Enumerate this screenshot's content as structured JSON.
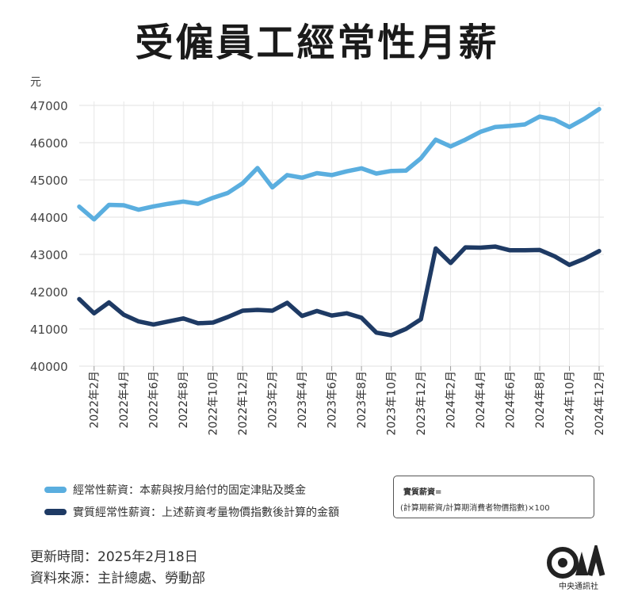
{
  "title": "受僱員工經常性月薪",
  "chart_data": {
    "type": "line",
    "ylabel": "元",
    "ylim": [
      40000,
      47000
    ],
    "yticks": [
      40000,
      41000,
      42000,
      43000,
      44000,
      45000,
      46000,
      47000
    ],
    "x": [
      "2022年1月",
      "2022年2月",
      "2022年3月",
      "2022年4月",
      "2022年5月",
      "2022年6月",
      "2022年7月",
      "2022年8月",
      "2022年9月",
      "2022年10月",
      "2022年11月",
      "2022年12月",
      "2023年1月",
      "2023年2月",
      "2023年3月",
      "2023年4月",
      "2023年5月",
      "2023年6月",
      "2023年7月",
      "2023年8月",
      "2023年9月",
      "2023年10月",
      "2023年11月",
      "2023年12月",
      "2024年1月",
      "2024年2月",
      "2024年3月",
      "2024年4月",
      "2024年5月",
      "2024年6月",
      "2024年7月",
      "2024年8月",
      "2024年9月",
      "2024年10月",
      "2024年11月",
      "2024年12月"
    ],
    "tick_labels": [
      "2022年2月",
      "2022年4月",
      "2022年6月",
      "2022年8月",
      "2022年10月",
      "2022年12月",
      "2023年2月",
      "2023年4月",
      "2023年6月",
      "2023年8月",
      "2023年10月",
      "2023年12月",
      "2024年2月",
      "2024年4月",
      "2024年6月",
      "2024年8月",
      "2024年10月",
      "2024年12月"
    ],
    "grid": true,
    "series": [
      {
        "name": "經常性薪資：本薪與按月給付的固定津貼及獎金",
        "color": "#5aaedf",
        "values": [
          44280,
          43940,
          44330,
          44320,
          44200,
          44290,
          44360,
          44420,
          44360,
          44520,
          44650,
          44910,
          45320,
          44800,
          45130,
          45060,
          45180,
          45130,
          45230,
          45310,
          45170,
          45240,
          45250,
          45580,
          46080,
          45900,
          46080,
          46290,
          46420,
          46450,
          46490,
          46700,
          46620,
          46420,
          46640,
          46900
        ]
      },
      {
        "name": "實質經常性薪資：上述薪資考量物價指數後計算的金額",
        "color": "#1e3a64",
        "values": [
          41800,
          41420,
          41710,
          41380,
          41200,
          41120,
          41200,
          41280,
          41150,
          41170,
          41320,
          41490,
          41510,
          41490,
          41700,
          41350,
          41480,
          41360,
          41420,
          41300,
          40900,
          40830,
          41000,
          41260,
          43160,
          42770,
          43190,
          43180,
          43210,
          43110,
          43110,
          43120,
          42950,
          42720,
          42880,
          43090
        ]
      }
    ]
  },
  "formula": {
    "line1": "實質薪資=",
    "line2": "(計算期薪資/計算期消費者物價指數)×100"
  },
  "footer": {
    "updated": "更新時間：2025年2月18日",
    "source": "資料來源：主計總處、勞動部"
  },
  "logo": {
    "caption": "中央通訊社"
  }
}
